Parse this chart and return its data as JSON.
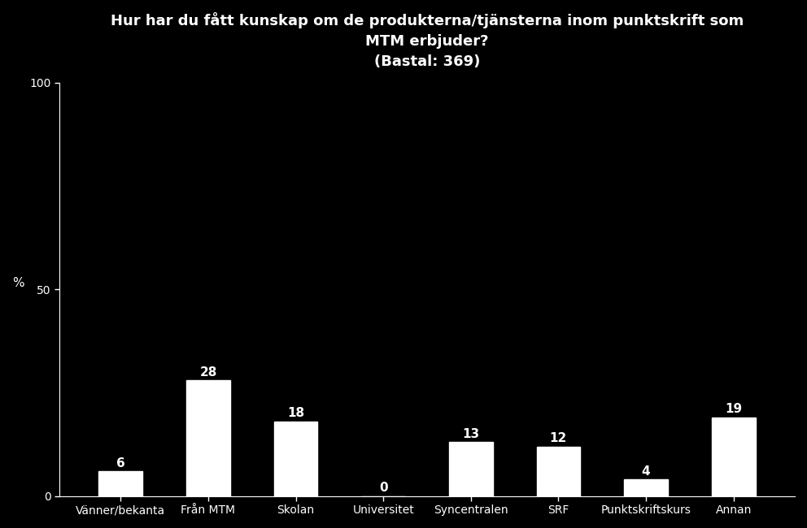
{
  "title_line1": "Hur har du fått kunskap om de produkterna/tjänsterna inom punktskrift som",
  "title_line2": "MTM erbjuder?",
  "subtitle": "(Bastal: 369)",
  "categories": [
    "Vänner/bekanta",
    "Från MTM",
    "Skolan",
    "Universitet",
    "Syncentralen",
    "SRF",
    "Punktskriftskurs",
    "Annan"
  ],
  "values": [
    6,
    28,
    18,
    0,
    13,
    12,
    4,
    19
  ],
  "bar_color": "#ffffff",
  "background_color": "#000000",
  "text_color": "#ffffff",
  "axis_color": "#ffffff",
  "ylabel": "%",
  "ylim": [
    0,
    100
  ],
  "yticks": [
    0,
    50,
    100
  ],
  "title_fontsize": 13,
  "subtitle_fontsize": 11,
  "label_fontsize": 11,
  "tick_fontsize": 10,
  "value_fontsize": 11
}
